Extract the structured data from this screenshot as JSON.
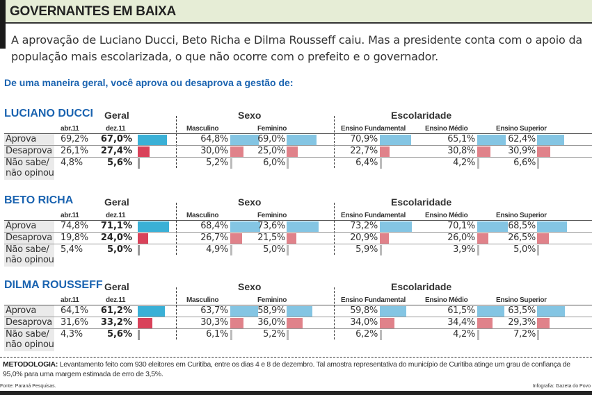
{
  "header": {
    "title": "GOVERNANTES EM BAIXA"
  },
  "intro": "A aprovação de Luciano Ducci, Beto Richa e Dilma Rousseff caiu. Mas a presidente conta com o apoio da população mais escolarizada, o que não ocorre com o prefeito e o governador.",
  "question": "De uma maneira geral, você aprova ou desaprova a gestão de:",
  "footer": {
    "method_label": "METODOLOGIA:",
    "method_text": "Levantamento feito com 930 eleitores em Curitiba, entre os dias 4 e 8 de dezembro. Tal amostra representativa do município de Curitiba atinge um grau de confiança de 95,0% para uma margem estimada de erro de 3,5%.",
    "source": "Fonte: Paraná Pesquisas.",
    "credit": "Infografia: Gazeta do Povo"
  },
  "colors": {
    "title_blue": "#1a63b0",
    "approve_main": "#3ab0d6",
    "approve": "#84c5e3",
    "disapprove_main": "#d9425a",
    "disapprove": "#e0828a",
    "unsure_main": "#999999",
    "unsure": "#bbbbbb",
    "header_bg": "#e6edd6"
  },
  "chart_data": {
    "type": "bar",
    "unit": "%",
    "groups": {
      "geral": "Geral",
      "sexo": "Sexo",
      "escolaridade": "Escolaridade"
    },
    "columns": [
      "abr.11",
      "dez.11",
      "Masculino",
      "Feminino",
      "Ensino Fundamental",
      "Ensino Médio",
      "Ensino Superior"
    ],
    "rows": [
      "Aprova",
      "Desaprova",
      "Não sabe/\nnão opinou"
    ],
    "politicians": [
      {
        "name": "LUCIANO DUCCI",
        "values": [
          [
            69.2,
            67.0,
            64.8,
            69.0,
            70.9,
            65.1,
            62.4
          ],
          [
            26.1,
            27.4,
            30.0,
            25.0,
            22.7,
            30.8,
            30.9
          ],
          [
            4.8,
            5.6,
            5.2,
            6.0,
            6.4,
            4.2,
            6.6
          ]
        ]
      },
      {
        "name": "BETO RICHA",
        "values": [
          [
            74.8,
            71.1,
            68.4,
            73.6,
            73.2,
            70.1,
            68.5
          ],
          [
            19.8,
            24.0,
            26.7,
            21.5,
            20.9,
            26.0,
            26.5
          ],
          [
            5.4,
            5.0,
            4.9,
            5.0,
            5.9,
            3.9,
            5.0
          ]
        ]
      },
      {
        "name": "DILMA ROUSSEFF",
        "values": [
          [
            64.1,
            61.2,
            63.7,
            58.9,
            59.8,
            61.5,
            63.5
          ],
          [
            31.6,
            33.2,
            30.3,
            36.0,
            34.0,
            34.4,
            29.3
          ],
          [
            4.3,
            5.6,
            6.1,
            5.2,
            6.2,
            4.2,
            7.2
          ]
        ]
      }
    ]
  }
}
